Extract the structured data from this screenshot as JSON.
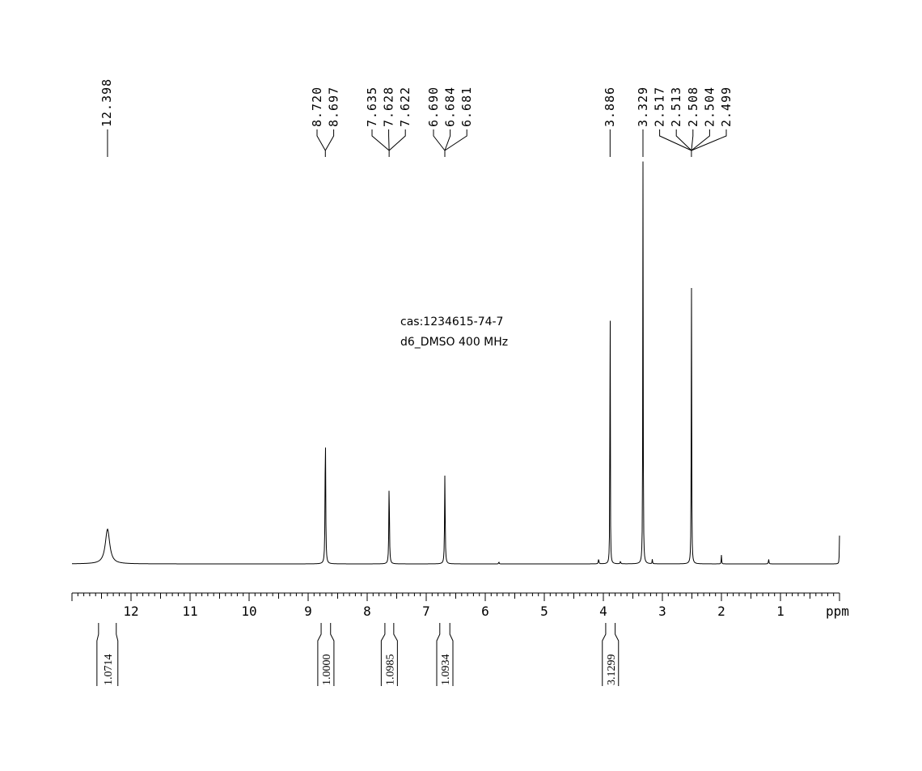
{
  "chart_data": {
    "type": "line",
    "title": "",
    "annotation_lines": [
      "cas:1234615-74-7",
      "d6_DMSO  400 MHz"
    ],
    "xlabel": "ppm",
    "ylabel": "",
    "xlim": [
      13.0,
      0.0
    ],
    "x_reversed": true,
    "grid": false,
    "x_ticks": [
      12,
      11,
      10,
      9,
      8,
      7,
      6,
      5,
      4,
      3,
      2,
      1
    ],
    "peak_groups": [
      {
        "labels": [
          "12.398"
        ],
        "shifts": [
          12.398
        ]
      },
      {
        "labels": [
          "8.720",
          "8.697"
        ],
        "shifts": [
          8.72,
          8.697
        ]
      },
      {
        "labels": [
          "7.635",
          "7.628",
          "7.622"
        ],
        "shifts": [
          7.635,
          7.628,
          7.622
        ]
      },
      {
        "labels": [
          "6.690",
          "6.684",
          "6.681"
        ],
        "shifts": [
          6.69,
          6.684,
          6.681
        ]
      },
      {
        "labels": [
          "3.886"
        ],
        "shifts": [
          3.886
        ]
      },
      {
        "labels": [
          "3.329",
          "2.517",
          "2.513",
          "2.508",
          "2.504",
          "2.499"
        ],
        "shifts": [
          3.329,
          2.517,
          2.513,
          2.508,
          2.504,
          2.499
        ]
      }
    ],
    "spectrum_peaks": [
      {
        "ppm": 12.398,
        "intensity": 0.086,
        "width": 0.045
      },
      {
        "ppm": 8.708,
        "intensity": 0.339,
        "width": 0.006
      },
      {
        "ppm": 7.628,
        "intensity": 0.204,
        "width": 0.006
      },
      {
        "ppm": 6.684,
        "intensity": 0.224,
        "width": 0.006
      },
      {
        "ppm": 3.886,
        "intensity": 1.0,
        "width": 0.003
      },
      {
        "ppm": 3.329,
        "intensity": 1.0,
        "width": 0.004
      },
      {
        "ppm": 2.508,
        "intensity": 0.74,
        "width": 0.004
      },
      {
        "ppm": 4.08,
        "intensity": 0.012,
        "width": 0.006
      },
      {
        "ppm": 3.71,
        "intensity": 0.006,
        "width": 0.006
      },
      {
        "ppm": 3.17,
        "intensity": 0.012,
        "width": 0.004
      },
      {
        "ppm": 2.0,
        "intensity": 0.022,
        "width": 0.004
      },
      {
        "ppm": 1.2,
        "intensity": 0.012,
        "width": 0.005
      },
      {
        "ppm": 5.77,
        "intensity": 0.006,
        "width": 0.004
      },
      {
        "ppm": 0.0,
        "intensity": 0.07,
        "width": 0.004
      }
    ],
    "integrals": [
      {
        "label": "1.0714",
        "from": 12.55,
        "to": 12.25
      },
      {
        "label": "1.0000",
        "from": 8.78,
        "to": 8.62
      },
      {
        "label": "1.0985",
        "from": 7.7,
        "to": 7.55
      },
      {
        "label": "1.0934",
        "from": 6.77,
        "to": 6.6
      },
      {
        "label": "3.1299",
        "from": 3.96,
        "to": 3.8
      }
    ]
  }
}
